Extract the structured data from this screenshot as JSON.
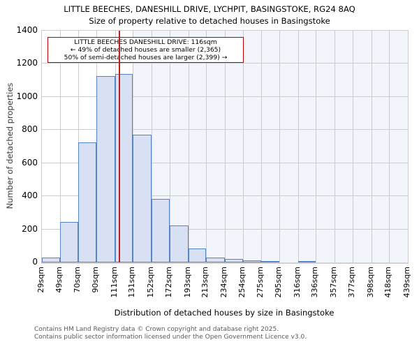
{
  "chart_data": {
    "type": "bar",
    "title": "LITTLE BEECHES, DANESHILL DRIVE, LYCHPIT, BASINGSTOKE, RG24 8AQ",
    "subtitle": "Size of property relative to detached houses in Basingstoke",
    "xlabel": "Distribution of detached houses by size in Basingstoke",
    "ylabel": "Number of detached properties",
    "bin_edges_sqm": [
      29,
      49,
      70,
      90,
      111,
      131,
      152,
      172,
      193,
      213,
      234,
      254,
      275,
      295,
      316,
      336,
      357,
      377,
      398,
      418,
      439
    ],
    "x_tick_labels": [
      "29sqm",
      "49sqm",
      "70sqm",
      "90sqm",
      "111sqm",
      "131sqm",
      "152sqm",
      "172sqm",
      "193sqm",
      "213sqm",
      "234sqm",
      "254sqm",
      "275sqm",
      "295sqm",
      "316sqm",
      "336sqm",
      "357sqm",
      "377sqm",
      "398sqm",
      "418sqm",
      "439sqm"
    ],
    "counts": [
      30,
      245,
      725,
      1125,
      1140,
      770,
      385,
      225,
      85,
      30,
      20,
      14,
      10,
      0,
      8,
      0,
      0,
      0,
      0,
      0
    ],
    "ylim": [
      0,
      1400
    ],
    "y_ticks": [
      0,
      200,
      400,
      600,
      800,
      1000,
      1200,
      1400
    ],
    "grid": true,
    "legend": "none",
    "subject_line_sqm": 116,
    "shade_from_sqm": 131,
    "annotation": {
      "line1": "LITTLE BEECHES DANESHILL DRIVE: 116sqm",
      "line2": "← 49% of detached houses are smaller (2,365)",
      "line3": "50% of semi-detached houses are larger (2,399) →"
    },
    "colors": {
      "bar_fill": "#d8e1f3",
      "bar_edge": "#5585c5",
      "grid": "#cccccc",
      "shade": "#f2f5fc",
      "subject_line": "#bb1f1f",
      "annotation_border": "#c00000"
    }
  },
  "footer": {
    "line1": "Contains HM Land Registry data © Crown copyright and database right 2025.",
    "line2": "Contains public sector information licensed under the Open Government Licence v3.0."
  }
}
